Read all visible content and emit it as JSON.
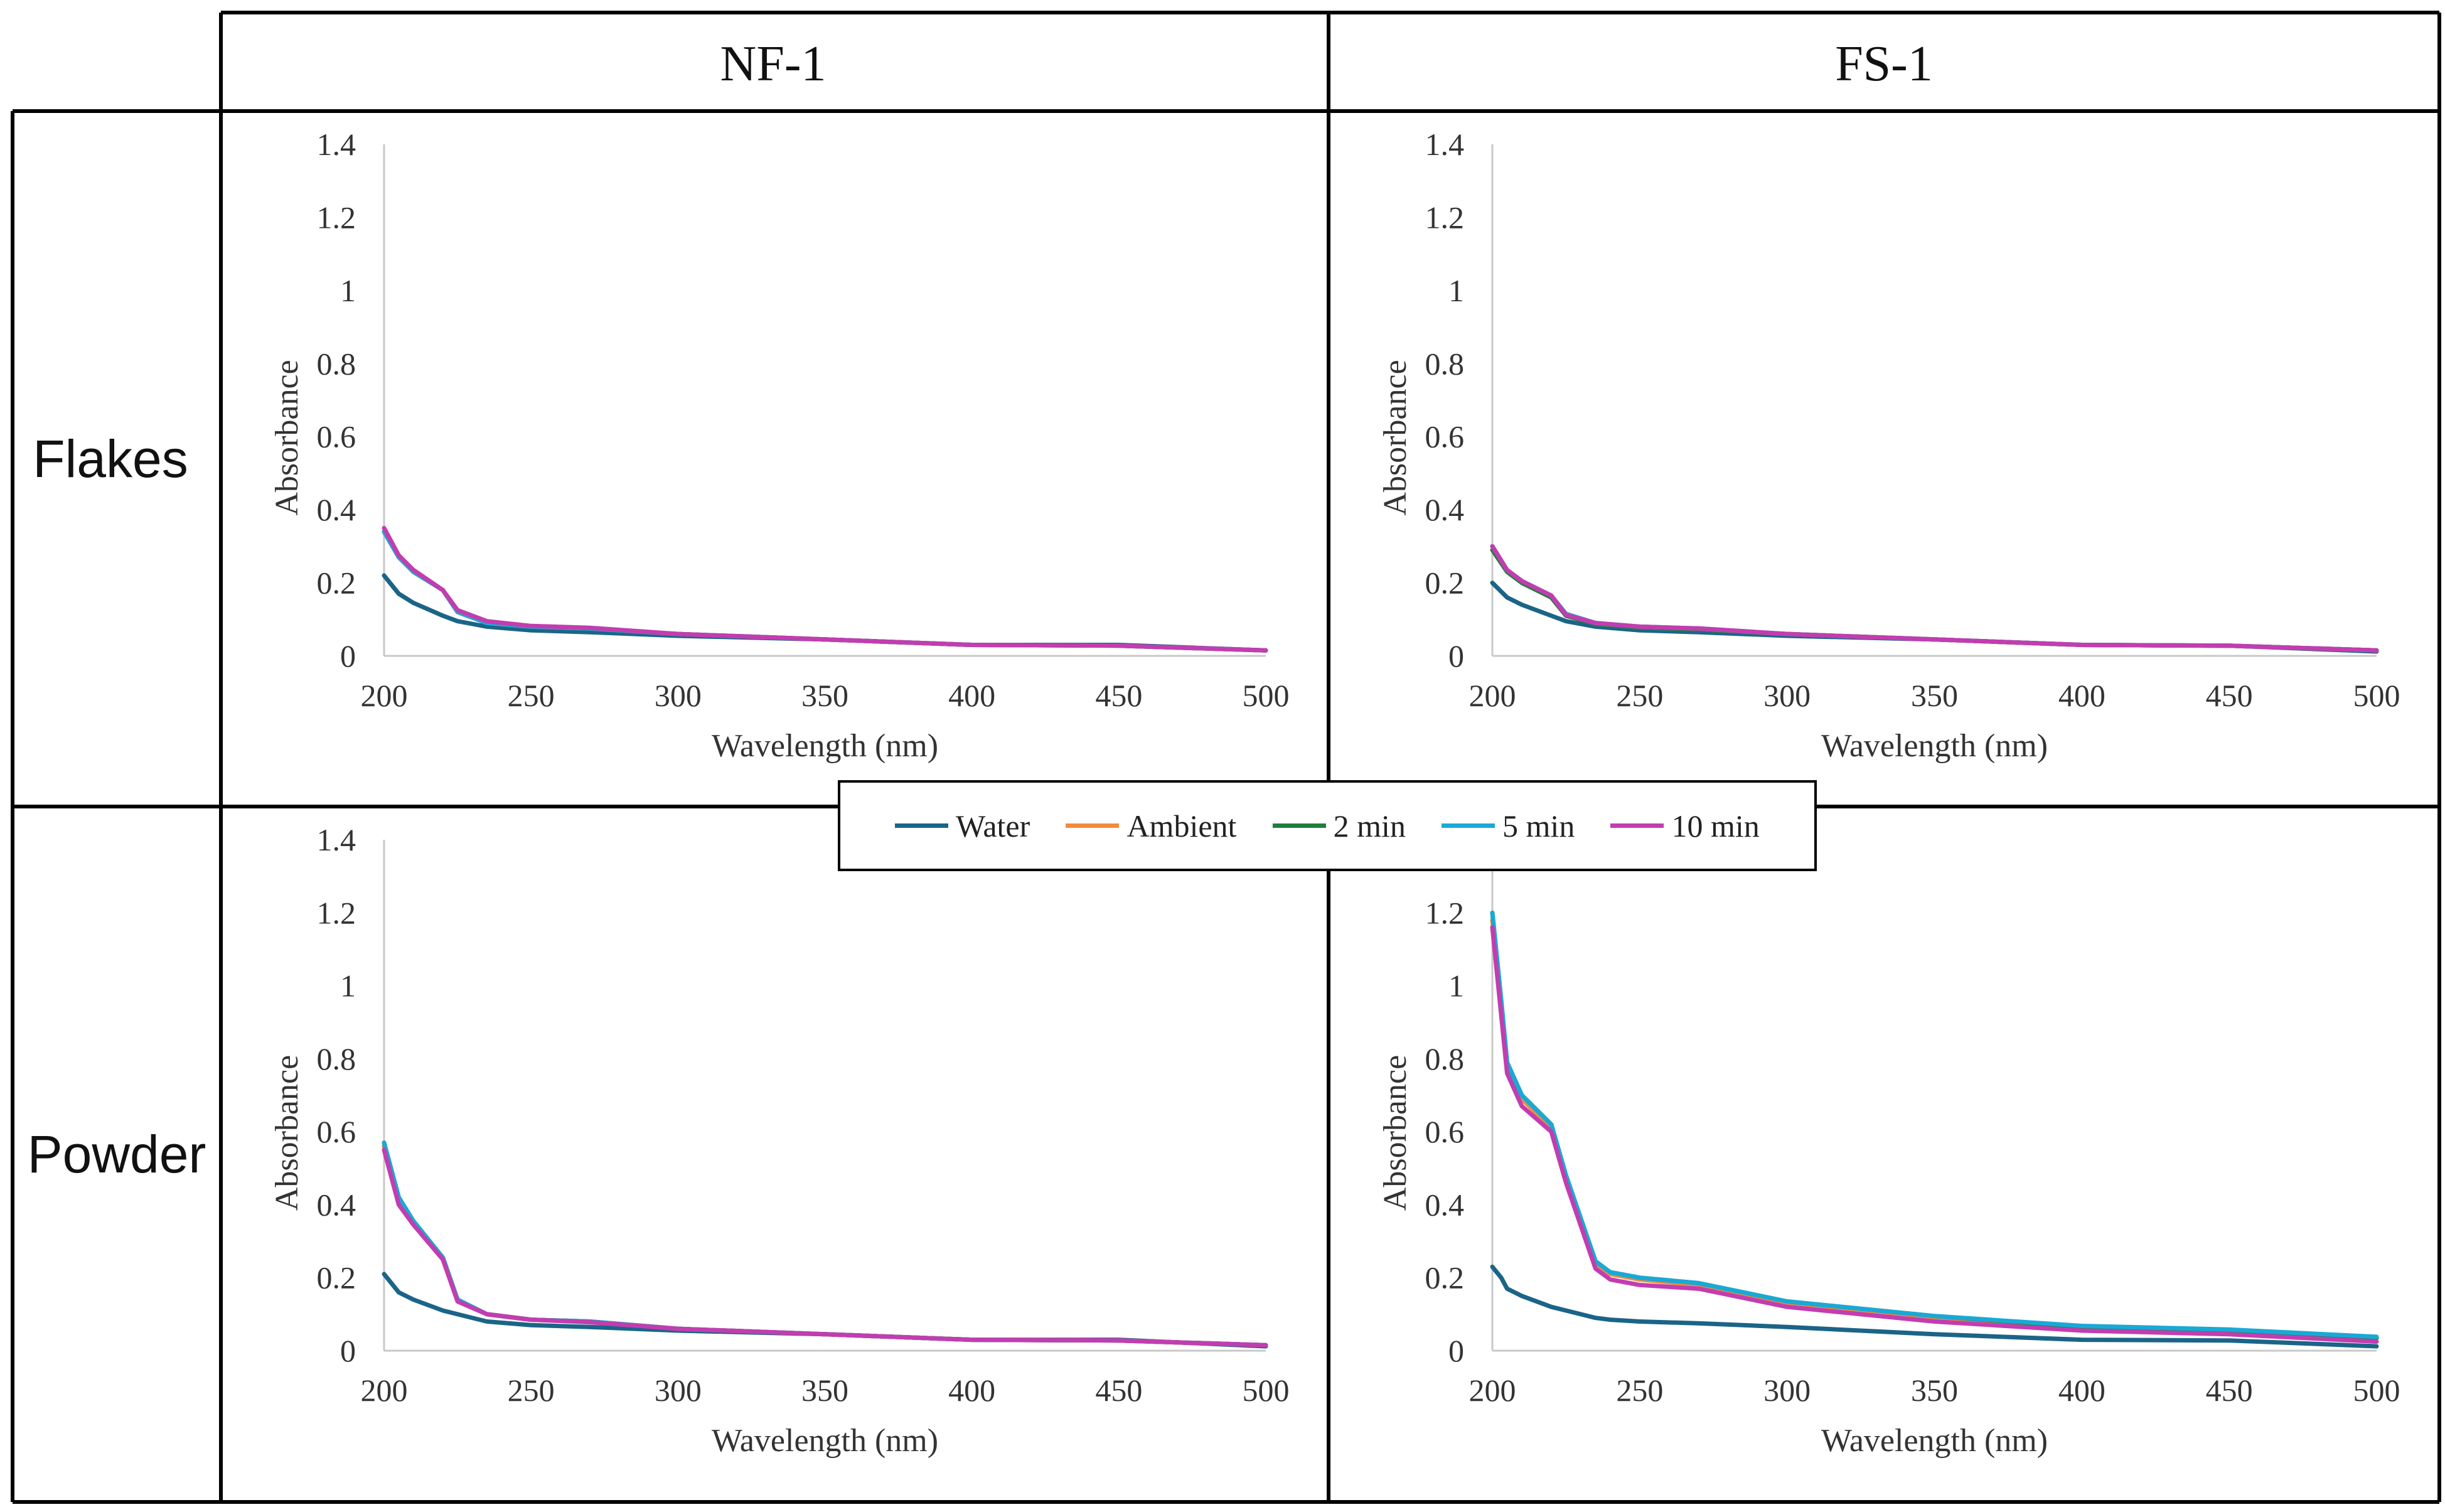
{
  "colors": {
    "water": "#1b6488",
    "ambient": "#f28b3c",
    "min2": "#1e7f3a",
    "min5": "#1aa9d6",
    "min10": "#c23db0"
  },
  "grid": {
    "columns": [
      "NF-1",
      "FS-1"
    ],
    "rows": [
      "Flakes",
      "Powder"
    ]
  },
  "legend": {
    "items": [
      {
        "label": "Water",
        "color_key": "water"
      },
      {
        "label": "Ambient",
        "color_key": "ambient"
      },
      {
        "label": "2 min",
        "color_key": "min2"
      },
      {
        "label": "5 min",
        "color_key": "min5"
      },
      {
        "label": "10 min",
        "color_key": "min10"
      }
    ]
  },
  "chart_data": [
    {
      "id": "flakes-nf1",
      "type": "line",
      "row": "Flakes",
      "column": "NF-1",
      "xlabel": "Wavelength (nm)",
      "ylabel": "Absorbance",
      "xlim": [
        200,
        500
      ],
      "ylim": [
        0,
        1.4
      ],
      "xticks": [
        "200",
        "250",
        "300",
        "350",
        "400",
        "450",
        "500"
      ],
      "yticks": [
        "0",
        "0.2",
        "0.4",
        "0.6",
        "0.8",
        "1",
        "1.2",
        "1.4"
      ],
      "x": [
        200,
        205,
        210,
        220,
        225,
        235,
        250,
        270,
        300,
        350,
        400,
        450,
        500
      ],
      "series": [
        {
          "name": "Water",
          "values": [
            0.22,
            0.17,
            0.145,
            0.11,
            0.095,
            0.08,
            0.07,
            0.065,
            0.055,
            0.045,
            0.03,
            0.03,
            0.015
          ]
        },
        {
          "name": "Ambient",
          "values": [
            0.34,
            0.27,
            0.23,
            0.18,
            0.12,
            0.09,
            0.08,
            0.075,
            0.06,
            0.045,
            0.03,
            0.028,
            0.015
          ]
        },
        {
          "name": "2 min",
          "values": [
            0.34,
            0.27,
            0.23,
            0.18,
            0.12,
            0.09,
            0.08,
            0.075,
            0.06,
            0.045,
            0.03,
            0.028,
            0.015
          ]
        },
        {
          "name": "5 min",
          "values": [
            0.34,
            0.27,
            0.23,
            0.18,
            0.12,
            0.09,
            0.08,
            0.075,
            0.06,
            0.045,
            0.03,
            0.028,
            0.015
          ]
        },
        {
          "name": "10 min",
          "values": [
            0.35,
            0.275,
            0.235,
            0.18,
            0.125,
            0.095,
            0.082,
            0.077,
            0.06,
            0.045,
            0.03,
            0.028,
            0.015
          ]
        }
      ]
    },
    {
      "id": "flakes-fs1",
      "type": "line",
      "row": "Flakes",
      "column": "FS-1",
      "xlabel": "Wavelength (nm)",
      "ylabel": "Absorbance",
      "xlim": [
        200,
        500
      ],
      "ylim": [
        0,
        1.4
      ],
      "xticks": [
        "200",
        "250",
        "300",
        "350",
        "400",
        "450",
        "500"
      ],
      "yticks": [
        "0",
        "0.2",
        "0.4",
        "0.6",
        "0.8",
        "1",
        "1.2",
        "1.4"
      ],
      "x": [
        200,
        205,
        210,
        220,
        225,
        235,
        250,
        270,
        300,
        350,
        400,
        450,
        500
      ],
      "series": [
        {
          "name": "Water",
          "values": [
            0.2,
            0.16,
            0.14,
            0.11,
            0.095,
            0.08,
            0.07,
            0.065,
            0.055,
            0.045,
            0.03,
            0.028,
            0.012
          ]
        },
        {
          "name": "Ambient",
          "values": [
            0.29,
            0.23,
            0.2,
            0.16,
            0.11,
            0.088,
            0.078,
            0.073,
            0.06,
            0.045,
            0.03,
            0.028,
            0.015
          ]
        },
        {
          "name": "2 min",
          "values": [
            0.29,
            0.23,
            0.2,
            0.16,
            0.11,
            0.088,
            0.078,
            0.073,
            0.06,
            0.045,
            0.03,
            0.028,
            0.015
          ]
        },
        {
          "name": "5 min",
          "values": [
            0.3,
            0.235,
            0.205,
            0.165,
            0.115,
            0.09,
            0.08,
            0.075,
            0.06,
            0.045,
            0.03,
            0.028,
            0.015
          ]
        },
        {
          "name": "10 min",
          "values": [
            0.3,
            0.235,
            0.205,
            0.165,
            0.112,
            0.09,
            0.08,
            0.075,
            0.06,
            0.045,
            0.03,
            0.028,
            0.015
          ]
        }
      ]
    },
    {
      "id": "powder-nf1",
      "type": "line",
      "row": "Powder",
      "column": "NF-1",
      "xlabel": "Wavelength (nm)",
      "ylabel": "Absorbance",
      "xlim": [
        200,
        500
      ],
      "ylim": [
        0,
        1.4
      ],
      "xticks": [
        "200",
        "250",
        "300",
        "350",
        "400",
        "450",
        "500"
      ],
      "yticks": [
        "0",
        "0.2",
        "0.4",
        "0.6",
        "0.8",
        "1",
        "1.2",
        "1.4"
      ],
      "x": [
        200,
        205,
        210,
        220,
        225,
        235,
        250,
        270,
        300,
        350,
        400,
        450,
        500
      ],
      "series": [
        {
          "name": "Water",
          "values": [
            0.21,
            0.16,
            0.14,
            0.11,
            0.1,
            0.08,
            0.07,
            0.065,
            0.055,
            0.045,
            0.03,
            0.03,
            0.012
          ]
        },
        {
          "name": "Ambient",
          "values": [
            0.56,
            0.41,
            0.35,
            0.25,
            0.14,
            0.1,
            0.085,
            0.08,
            0.06,
            0.045,
            0.03,
            0.028,
            0.015
          ]
        },
        {
          "name": "2 min",
          "values": [
            0.57,
            0.42,
            0.355,
            0.255,
            0.14,
            0.1,
            0.085,
            0.08,
            0.06,
            0.045,
            0.03,
            0.028,
            0.015
          ]
        },
        {
          "name": "5 min",
          "values": [
            0.57,
            0.42,
            0.355,
            0.255,
            0.14,
            0.1,
            0.085,
            0.08,
            0.06,
            0.045,
            0.03,
            0.028,
            0.015
          ]
        },
        {
          "name": "10 min",
          "values": [
            0.55,
            0.4,
            0.345,
            0.25,
            0.135,
            0.1,
            0.085,
            0.078,
            0.06,
            0.045,
            0.03,
            0.028,
            0.015
          ]
        }
      ]
    },
    {
      "id": "powder-fs1",
      "type": "line",
      "row": "Powder",
      "column": "FS-1",
      "xlabel": "Wavelength (nm)",
      "ylabel": "Absorbance",
      "xlim": [
        200,
        500
      ],
      "ylim": [
        0,
        1.4
      ],
      "xticks": [
        "200",
        "250",
        "300",
        "350",
        "400",
        "450",
        "500"
      ],
      "yticks": [
        "0",
        "0.2",
        "0.4",
        "0.6",
        "0.8",
        "1",
        "1.2"
      ],
      "x": [
        200,
        203,
        205,
        210,
        220,
        225,
        235,
        240,
        250,
        270,
        300,
        350,
        400,
        450,
        500
      ],
      "series": [
        {
          "name": "Water",
          "values": [
            0.23,
            0.2,
            0.17,
            0.15,
            0.12,
            0.11,
            0.09,
            0.085,
            0.08,
            0.075,
            0.065,
            0.045,
            0.03,
            0.028,
            0.012
          ]
        },
        {
          "name": "Ambient",
          "values": [
            1.18,
            0.95,
            0.78,
            0.69,
            0.61,
            0.47,
            0.24,
            0.21,
            0.195,
            0.18,
            0.13,
            0.09,
            0.065,
            0.05,
            0.035
          ]
        },
        {
          "name": "2 min",
          "values": [
            1.2,
            0.96,
            0.79,
            0.7,
            0.62,
            0.48,
            0.245,
            0.215,
            0.2,
            0.185,
            0.135,
            0.095,
            0.065,
            0.055,
            0.035
          ]
        },
        {
          "name": "5 min",
          "values": [
            1.2,
            0.96,
            0.79,
            0.7,
            0.62,
            0.48,
            0.245,
            0.215,
            0.2,
            0.185,
            0.135,
            0.095,
            0.068,
            0.058,
            0.038
          ]
        },
        {
          "name": "10 min",
          "values": [
            1.16,
            0.92,
            0.76,
            0.67,
            0.6,
            0.46,
            0.225,
            0.195,
            0.18,
            0.17,
            0.12,
            0.08,
            0.055,
            0.045,
            0.025
          ]
        }
      ]
    }
  ]
}
